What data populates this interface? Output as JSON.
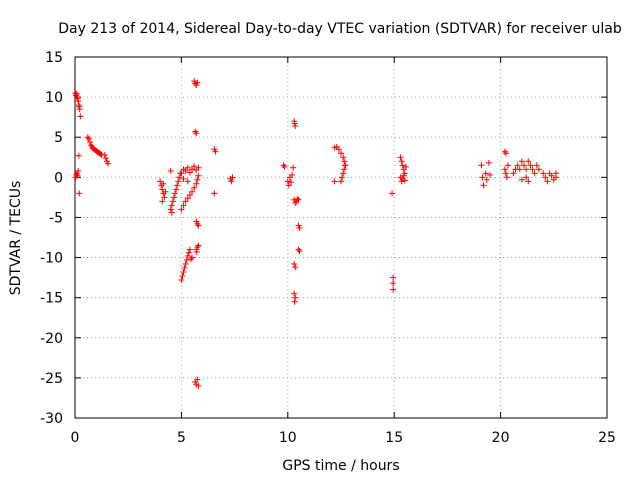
{
  "chart_data": {
    "type": "scatter",
    "title": "Day 213 of 2014, Sidereal Day-to-day VTEC variation (SDTVAR) for receiver ulab",
    "xlabel": "GPS time / hours",
    "ylabel": "SDTVAR / TECUs",
    "xlim": [
      0,
      25
    ],
    "ylim": [
      -30,
      15
    ],
    "xticks": [
      "0",
      "5",
      "10",
      "15",
      "20",
      "25"
    ],
    "yticks": [
      "15",
      "10",
      "5",
      "0",
      "-5",
      "-10",
      "-15",
      "-20",
      "-25",
      "-30"
    ],
    "grid": true,
    "marker": "+",
    "marker_color": "#ff0000",
    "series": [
      {
        "name": "SDTVAR",
        "points": [
          [
            0.02,
            10.5
          ],
          [
            0.05,
            10.2
          ],
          [
            0.08,
            10.4
          ],
          [
            0.1,
            10.0
          ],
          [
            0.12,
            9.8
          ],
          [
            0.15,
            9.5
          ],
          [
            0.18,
            9.0
          ],
          [
            0.2,
            8.8
          ],
          [
            0.22,
            8.5
          ],
          [
            0.25,
            7.6
          ],
          [
            0.03,
            0.0
          ],
          [
            0.06,
            0.3
          ],
          [
            0.09,
            0.5
          ],
          [
            0.12,
            0.2
          ],
          [
            0.15,
            0.8
          ],
          [
            0.18,
            2.7
          ],
          [
            0.2,
            -2.0
          ],
          [
            0.6,
            5.0
          ],
          [
            0.65,
            4.8
          ],
          [
            0.7,
            4.4
          ],
          [
            0.75,
            4.0
          ],
          [
            0.8,
            3.8
          ],
          [
            0.85,
            3.6
          ],
          [
            0.9,
            3.5
          ],
          [
            0.95,
            3.4
          ],
          [
            1.0,
            3.3
          ],
          [
            1.05,
            3.2
          ],
          [
            1.1,
            3.1
          ],
          [
            1.15,
            3.0
          ],
          [
            1.2,
            2.9
          ],
          [
            1.25,
            2.8
          ],
          [
            1.4,
            2.8
          ],
          [
            1.45,
            2.4
          ],
          [
            1.5,
            2.0
          ],
          [
            1.55,
            1.7
          ],
          [
            4.0,
            -0.5
          ],
          [
            4.05,
            -1.0
          ],
          [
            4.1,
            -1.5
          ],
          [
            4.15,
            -2.0
          ],
          [
            4.2,
            -2.5
          ],
          [
            4.1,
            -3.0
          ],
          [
            4.15,
            -0.8
          ],
          [
            4.25,
            -1.8
          ],
          [
            4.5,
            0.8
          ],
          [
            4.5,
            -4.0
          ],
          [
            4.55,
            -3.5
          ],
          [
            4.6,
            -3.0
          ],
          [
            4.65,
            -2.5
          ],
          [
            4.7,
            -2.0
          ],
          [
            4.75,
            -1.5
          ],
          [
            4.8,
            -1.0
          ],
          [
            4.85,
            -0.5
          ],
          [
            4.9,
            0.0
          ],
          [
            4.95,
            0.5
          ],
          [
            4.55,
            -4.4
          ],
          [
            5.0,
            -4.0
          ],
          [
            5.1,
            -3.5
          ],
          [
            5.2,
            -3.0
          ],
          [
            5.3,
            -2.6
          ],
          [
            5.4,
            -2.2
          ],
          [
            5.5,
            -1.8
          ],
          [
            5.6,
            -1.3
          ],
          [
            5.7,
            -0.8
          ],
          [
            5.75,
            -0.3
          ],
          [
            5.8,
            0.2
          ],
          [
            5.0,
            0.5
          ],
          [
            5.1,
            1.0
          ],
          [
            5.2,
            0.8
          ],
          [
            5.3,
            1.2
          ],
          [
            5.4,
            0.6
          ],
          [
            5.5,
            1.0
          ],
          [
            5.6,
            1.4
          ],
          [
            5.7,
            0.9
          ],
          [
            5.8,
            1.2
          ],
          [
            5.1,
            -0.2
          ],
          [
            5.3,
            -0.5
          ],
          [
            5.0,
            -12.8
          ],
          [
            5.05,
            -12.3
          ],
          [
            5.1,
            -11.8
          ],
          [
            5.15,
            -11.3
          ],
          [
            5.2,
            -10.8
          ],
          [
            5.25,
            -10.3
          ],
          [
            5.3,
            -9.8
          ],
          [
            5.35,
            -9.4
          ],
          [
            5.4,
            -9.0
          ],
          [
            5.45,
            -10.2
          ],
          [
            5.5,
            -10.0
          ],
          [
            5.7,
            -9.0
          ],
          [
            5.75,
            -8.7
          ],
          [
            5.8,
            -8.5
          ],
          [
            5.72,
            -9.3
          ],
          [
            5.6,
            12.0
          ],
          [
            5.65,
            11.7
          ],
          [
            5.7,
            11.5
          ],
          [
            5.75,
            11.8
          ],
          [
            5.65,
            5.7
          ],
          [
            5.7,
            5.5
          ],
          [
            5.7,
            -5.5
          ],
          [
            5.75,
            -5.8
          ],
          [
            5.8,
            -6.0
          ],
          [
            5.65,
            -25.5
          ],
          [
            5.7,
            -25.8
          ],
          [
            5.75,
            -25.2
          ],
          [
            5.8,
            -26.0
          ],
          [
            6.55,
            3.5
          ],
          [
            6.6,
            3.2
          ],
          [
            6.55,
            -2.0
          ],
          [
            7.3,
            -0.2
          ],
          [
            7.35,
            -0.5
          ],
          [
            7.4,
            0.0
          ],
          [
            9.8,
            1.5
          ],
          [
            9.85,
            1.3
          ],
          [
            10.0,
            -0.5
          ],
          [
            10.05,
            -1.0
          ],
          [
            10.1,
            0.0
          ],
          [
            10.15,
            -0.6
          ],
          [
            10.2,
            0.3
          ],
          [
            10.25,
            1.2
          ],
          [
            10.3,
            7.0
          ],
          [
            10.32,
            6.7
          ],
          [
            10.35,
            6.4
          ],
          [
            10.3,
            -2.8
          ],
          [
            10.35,
            -3.2
          ],
          [
            10.4,
            -3.0
          ],
          [
            10.45,
            -2.7
          ],
          [
            10.5,
            -2.8
          ],
          [
            10.5,
            -6.0
          ],
          [
            10.55,
            -6.3
          ],
          [
            10.5,
            -9.0
          ],
          [
            10.55,
            -9.2
          ],
          [
            10.3,
            -10.8
          ],
          [
            10.35,
            -11.2
          ],
          [
            10.3,
            -14.5
          ],
          [
            10.35,
            -15.0
          ],
          [
            10.32,
            -15.5
          ],
          [
            12.2,
            3.7
          ],
          [
            12.3,
            3.8
          ],
          [
            12.4,
            3.5
          ],
          [
            12.5,
            3.0
          ],
          [
            12.6,
            2.5
          ],
          [
            12.65,
            2.0
          ],
          [
            12.7,
            1.5
          ],
          [
            12.2,
            -0.5
          ],
          [
            12.5,
            -0.5
          ],
          [
            12.55,
            0.0
          ],
          [
            12.6,
            0.5
          ],
          [
            12.65,
            1.0
          ],
          [
            12.7,
            1.5
          ],
          [
            15.3,
            2.5
          ],
          [
            15.35,
            2.0
          ],
          [
            15.4,
            1.5
          ],
          [
            15.45,
            1.0
          ],
          [
            15.5,
            0.5
          ],
          [
            15.55,
            1.3
          ],
          [
            15.3,
            0.0
          ],
          [
            15.35,
            -0.5
          ],
          [
            15.4,
            -0.2
          ],
          [
            15.45,
            0.2
          ],
          [
            15.5,
            -0.4
          ],
          [
            14.9,
            -2.0
          ],
          [
            14.95,
            -12.5
          ],
          [
            14.95,
            -13.2
          ],
          [
            14.95,
            -14.0
          ],
          [
            19.1,
            1.5
          ],
          [
            19.15,
            0.0
          ],
          [
            19.2,
            -1.0
          ],
          [
            19.3,
            0.5
          ],
          [
            19.35,
            -0.3
          ],
          [
            19.45,
            1.8
          ],
          [
            19.5,
            0.3
          ],
          [
            20.2,
            3.2
          ],
          [
            20.25,
            3.0
          ],
          [
            20.2,
            1.0
          ],
          [
            20.25,
            0.5
          ],
          [
            20.3,
            0.0
          ],
          [
            20.35,
            1.5
          ],
          [
            20.6,
            0.5
          ],
          [
            20.7,
            1.0
          ],
          [
            20.8,
            1.5
          ],
          [
            20.9,
            1.0
          ],
          [
            21.0,
            2.0
          ],
          [
            21.1,
            1.5
          ],
          [
            21.2,
            1.0
          ],
          [
            21.3,
            2.0
          ],
          [
            21.4,
            1.5
          ],
          [
            21.5,
            1.0
          ],
          [
            21.6,
            0.5
          ],
          [
            21.7,
            1.5
          ],
          [
            21.8,
            1.0
          ],
          [
            21.2,
            0.0
          ],
          [
            21.3,
            -0.5
          ],
          [
            21.0,
            -0.3
          ],
          [
            22.0,
            0.5
          ],
          [
            22.1,
            0.0
          ],
          [
            22.2,
            -0.5
          ],
          [
            22.3,
            0.5
          ],
          [
            22.4,
            0.2
          ],
          [
            22.5,
            -0.3
          ],
          [
            22.6,
            0.0
          ],
          [
            22.6,
            0.5
          ]
        ]
      }
    ]
  }
}
